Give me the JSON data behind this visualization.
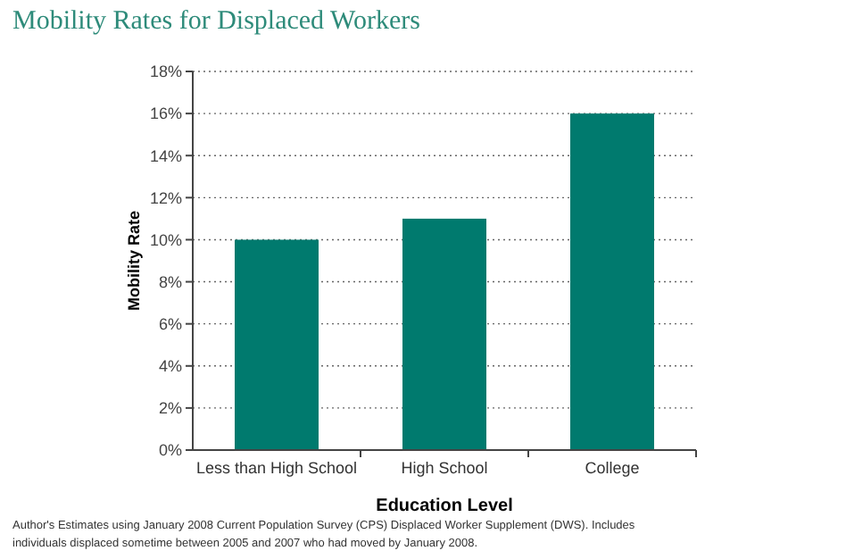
{
  "chart_data": {
    "type": "bar",
    "title": "Mobility Rates for Displaced Workers",
    "xlabel": "Education Level",
    "ylabel": "Mobility Rate",
    "categories": [
      "Less than High School",
      "High School",
      "College"
    ],
    "values": [
      10,
      11,
      16
    ],
    "color": "#007a6e",
    "ylim": [
      0,
      18
    ],
    "yticks": [
      {
        "value": 0,
        "label": "0%"
      },
      {
        "value": 2,
        "label": "2%"
      },
      {
        "value": 4,
        "label": "4%"
      },
      {
        "value": 6,
        "label": "6%"
      },
      {
        "value": 8,
        "label": "8%"
      },
      {
        "value": 10,
        "label": "10%"
      },
      {
        "value": 12,
        "label": "12%"
      },
      {
        "value": 14,
        "label": "14%"
      },
      {
        "value": 16,
        "label": "16%"
      },
      {
        "value": 18,
        "label": "18%"
      }
    ],
    "grid": "y",
    "annotations": [
      "Author's Estimates using January 2008 Current Population Survey (CPS) Displaced Worker Supplement (DWS).  Includes individuals displaced sometime between 2005 and 2007 who had moved by January 2008."
    ]
  }
}
